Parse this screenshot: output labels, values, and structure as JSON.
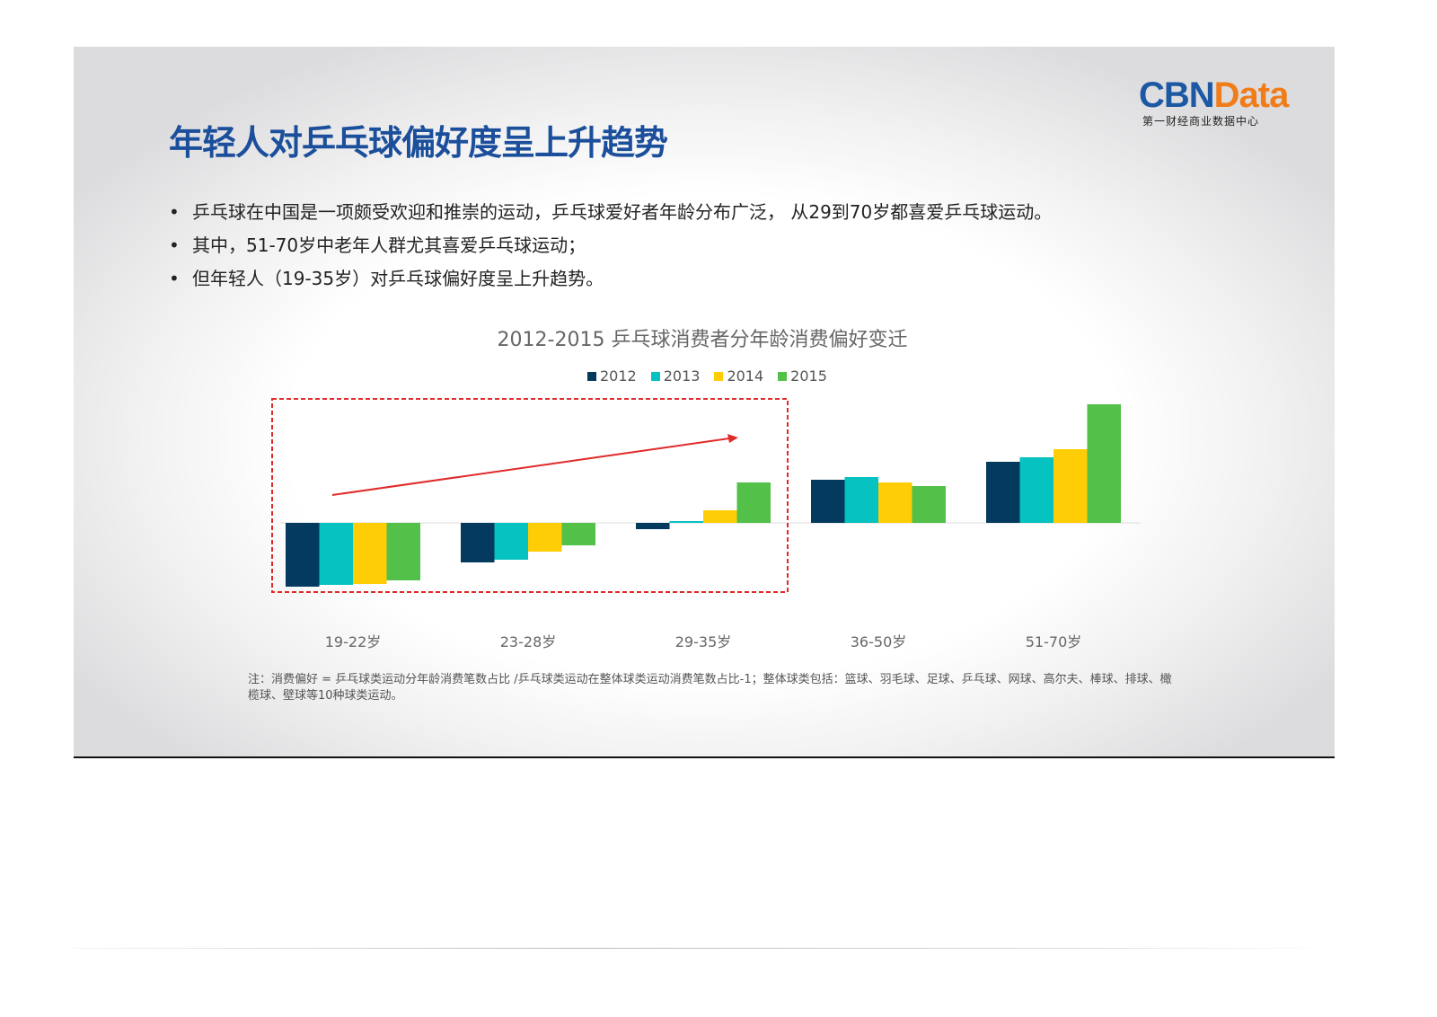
{
  "title": "年轻人对乒乓球偏好度呈上升趋势",
  "logo": {
    "brand_a": "CBN",
    "brand_b": "Data",
    "subtitle": "第一财经商业数据中心"
  },
  "bullets": [
    "乒乓球在中国是一项颇受欢迎和推崇的运动，乒乓球爱好者年龄分布广泛， 从29到70岁都喜爱乒乓球运动。",
    "其中，51-70岁中老年人群尤其喜爱乒乓球运动；",
    "但年轻人（19-35岁）对乒乓球偏好度呈上升趋势。"
  ],
  "note": "注：消费偏好 = 乒乓球类运动分年龄消费笔数占比 /乒乓球类运动在整体球类运动消费笔数占比-1；整体球类包括：篮球、羽毛球、足球、乒乓球、网球、高尔夫、棒球、排球、橄榄球、壁球等10种球类运动。",
  "chart_data": {
    "type": "bar",
    "title": "2012-2015 乒乓球消费者分年龄消费偏好变迁",
    "categories": [
      "19-22岁",
      "23-28岁",
      "29-35岁",
      "36-50岁",
      "51-70岁"
    ],
    "series": [
      {
        "name": "2012",
        "color": "#033a5e",
        "values": [
          -71,
          -44,
          -7,
          48,
          68
        ]
      },
      {
        "name": "2013",
        "color": "#06c2c0",
        "values": [
          -69,
          -41,
          2,
          51,
          73
        ]
      },
      {
        "name": "2014",
        "color": "#fecd05",
        "values": [
          -68,
          -32,
          14,
          45,
          82
        ]
      },
      {
        "name": "2015",
        "color": "#52c049",
        "values": [
          -64,
          -25,
          45,
          41,
          132
        ]
      }
    ],
    "ylim": [
      -80,
      140
    ],
    "y_axis_shown": false,
    "grid": false,
    "legend": "top",
    "annotation": {
      "type": "dashed-box-with-rising-arrow",
      "color": "#e02a2a",
      "categories": [
        "19-22岁",
        "23-28岁",
        "29-35岁"
      ]
    }
  }
}
